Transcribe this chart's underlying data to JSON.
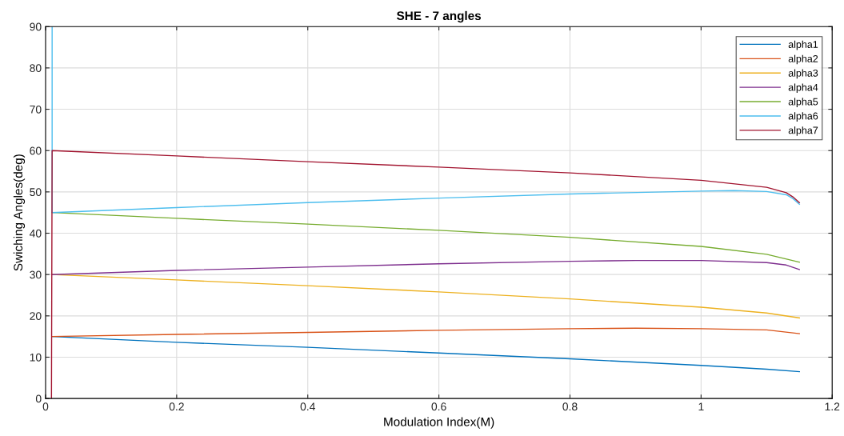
{
  "chart_data": {
    "type": "line",
    "title": "SHE - 7 angles",
    "xlabel": "Modulation Index(M)",
    "ylabel": "Swiching Angles(deg)",
    "xlim": [
      0,
      1.2
    ],
    "xticks": [
      0,
      0.2,
      0.4,
      0.6,
      0.8,
      1,
      1.2
    ],
    "ylim": [
      0,
      90
    ],
    "yticks": [
      0,
      10,
      20,
      30,
      40,
      50,
      60,
      70,
      80,
      90
    ],
    "grid": true,
    "legend": "top right",
    "marker": "none",
    "line_style": "solid",
    "series": [
      {
        "name": "alpha1",
        "color": "#0072bd",
        "x": [
          0.01,
          0.2,
          0.4,
          0.6,
          0.8,
          1.0,
          1.1,
          1.15
        ],
        "values": [
          15,
          13.6,
          12.4,
          11.0,
          9.6,
          8.0,
          7.1,
          6.5
        ]
      },
      {
        "name": "alpha2",
        "color": "#d95319",
        "x": [
          0.01,
          0.2,
          0.4,
          0.6,
          0.8,
          0.9,
          1.0,
          1.1,
          1.15
        ],
        "values": [
          15,
          15.5,
          16.0,
          16.5,
          16.9,
          17.0,
          16.9,
          16.6,
          15.7
        ]
      },
      {
        "name": "alpha3",
        "color": "#edb120",
        "x": [
          0.01,
          0.2,
          0.4,
          0.6,
          0.8,
          1.0,
          1.1,
          1.15
        ],
        "values": [
          30,
          28.7,
          27.3,
          25.8,
          24.1,
          22.1,
          20.7,
          19.5
        ]
      },
      {
        "name": "alpha4",
        "color": "#7e2f8e",
        "x": [
          0.01,
          0.2,
          0.4,
          0.6,
          0.8,
          0.9,
          1.0,
          1.1,
          1.13,
          1.15
        ],
        "values": [
          30,
          31.0,
          31.8,
          32.6,
          33.2,
          33.4,
          33.4,
          32.9,
          32.3,
          31.2
        ]
      },
      {
        "name": "alpha5",
        "color": "#77ac30",
        "x": [
          0.01,
          0.2,
          0.4,
          0.6,
          0.8,
          1.0,
          1.1,
          1.15
        ],
        "values": [
          45,
          43.6,
          42.2,
          40.7,
          39.0,
          36.8,
          34.9,
          33.0
        ]
      },
      {
        "name": "alpha6",
        "color": "#4dbeee",
        "x": [
          0.01,
          0.01,
          0.2,
          0.4,
          0.6,
          0.8,
          1.0,
          1.05,
          1.1,
          1.13,
          1.14,
          1.15
        ],
        "values": [
          90,
          45,
          46.2,
          47.4,
          48.5,
          49.5,
          50.2,
          50.3,
          50.1,
          49.3,
          48.4,
          47.0
        ]
      },
      {
        "name": "alpha7",
        "color": "#a2142f",
        "x": [
          0.009,
          0.01,
          0.2,
          0.4,
          0.6,
          0.8,
          1.0,
          1.1,
          1.13,
          1.14,
          1.15
        ],
        "values": [
          0,
          60,
          58.7,
          57.3,
          56.0,
          54.6,
          52.8,
          51.1,
          49.8,
          48.8,
          47.4
        ]
      }
    ]
  }
}
